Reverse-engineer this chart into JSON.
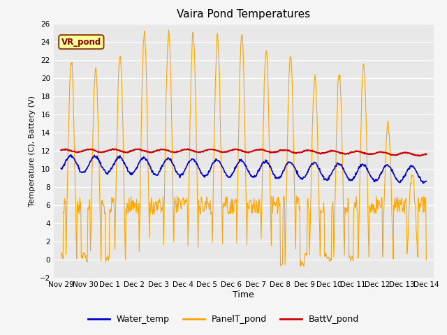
{
  "title": "Vaira Pond Temperatures",
  "xlabel": "Time",
  "ylabel": "Temperature (C), Battery (V)",
  "ylim": [
    -2,
    26
  ],
  "yticks": [
    -2,
    0,
    2,
    4,
    6,
    8,
    10,
    12,
    14,
    16,
    18,
    20,
    22,
    24,
    26
  ],
  "bg_color": "#e8e8e8",
  "fig_color": "#f5f5f5",
  "water_color": "#0000cc",
  "panel_color": "#FFA500",
  "batt_color": "#cc0000",
  "annotation_text": "VR_pond",
  "annotation_bg": "#ffff99",
  "annotation_border": "#8B4513",
  "legend_labels": [
    "Water_temp",
    "PanelT_pond",
    "BattV_pond"
  ],
  "x_tick_labels": [
    "Nov 29",
    "Nov 30",
    "Dec 1",
    "Dec 2",
    "Dec 3",
    "Dec 4",
    "Dec 5",
    "Dec 6",
    "Dec 7",
    "Dec 8",
    "Dec 9",
    "Dec 10",
    "Dec 11",
    "Dec 12",
    "Dec 13",
    "Dec 14"
  ]
}
